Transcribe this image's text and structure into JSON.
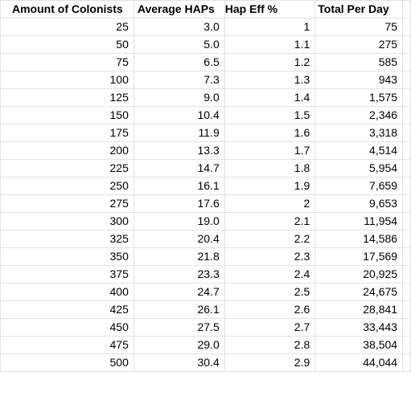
{
  "headers": [
    "Amount of Colonists",
    "Average HAPs",
    "Hap Eff %",
    "Total Per Day"
  ],
  "rows": [
    [
      "25",
      "3.0",
      "1",
      "75"
    ],
    [
      "50",
      "5.0",
      "1.1",
      "275"
    ],
    [
      "75",
      "6.5",
      "1.2",
      "585"
    ],
    [
      "100",
      "7.3",
      "1.3",
      "943"
    ],
    [
      "125",
      "9.0",
      "1.4",
      "1,575"
    ],
    [
      "150",
      "10.4",
      "1.5",
      "2,346"
    ],
    [
      "175",
      "11.9",
      "1.6",
      "3,318"
    ],
    [
      "200",
      "13.3",
      "1.7",
      "4,514"
    ],
    [
      "225",
      "14.7",
      "1.8",
      "5,954"
    ],
    [
      "250",
      "16.1",
      "1.9",
      "7,659"
    ],
    [
      "275",
      "17.6",
      "2",
      "9,653"
    ],
    [
      "300",
      "19.0",
      "2.1",
      "11,954"
    ],
    [
      "325",
      "20.4",
      "2.2",
      "14,586"
    ],
    [
      "350",
      "21.8",
      "2.3",
      "17,569"
    ],
    [
      "375",
      "23.3",
      "2.4",
      "20,925"
    ],
    [
      "400",
      "24.7",
      "2.5",
      "24,675"
    ],
    [
      "425",
      "26.1",
      "2.6",
      "28,841"
    ],
    [
      "450",
      "27.5",
      "2.7",
      "33,443"
    ],
    [
      "475",
      "29.0",
      "2.8",
      "38,504"
    ],
    [
      "500",
      "30.4",
      "2.9",
      "44,044"
    ]
  ]
}
